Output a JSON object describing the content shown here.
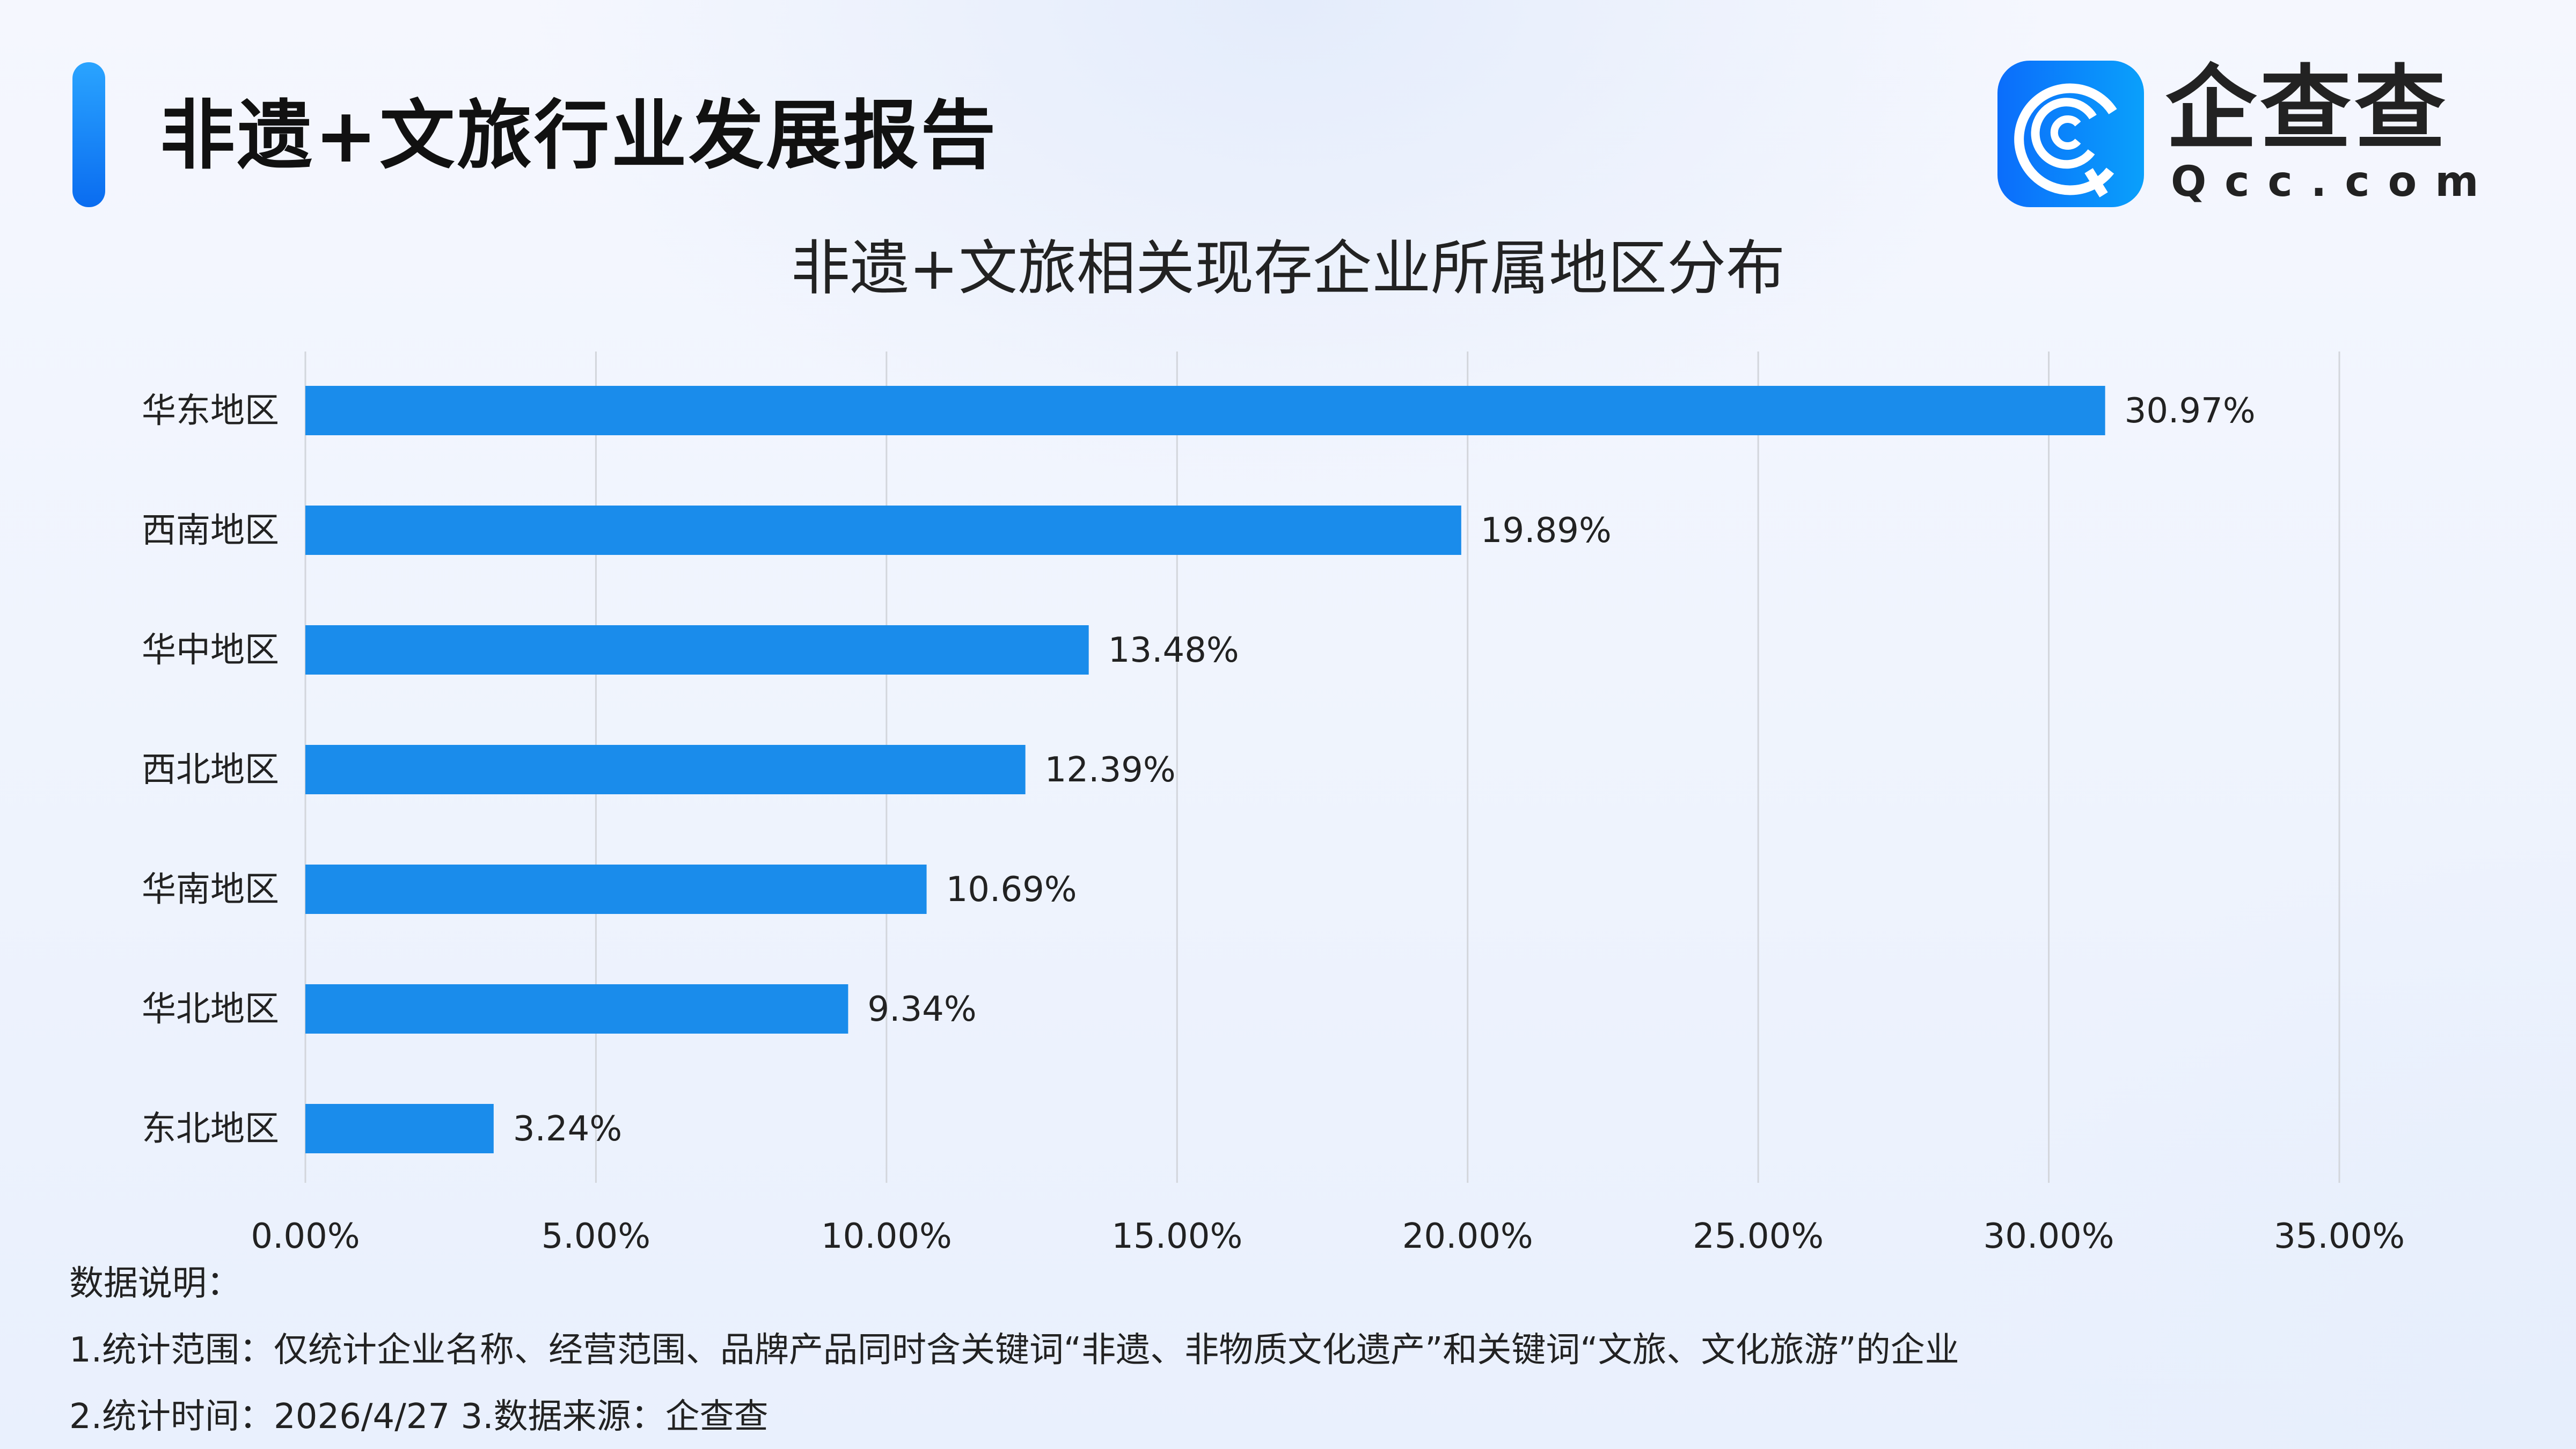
{
  "header": {
    "title": "非遗+文旅行业发展报告",
    "logo_cn": "企查查",
    "logo_en": "Qcc.com"
  },
  "colors": {
    "bar": "#1a8ceb",
    "accent": "#1684f5",
    "grid": "#d3d6dc"
  },
  "chart_data": {
    "type": "bar",
    "orientation": "horizontal",
    "title": "非遗+文旅相关现存企业所属地区分布",
    "categories": [
      "华东地区",
      "西南地区",
      "华中地区",
      "西北地区",
      "华南地区",
      "华北地区",
      "东北地区"
    ],
    "values": [
      30.97,
      19.89,
      13.48,
      12.39,
      10.69,
      9.34,
      3.24
    ],
    "value_labels": [
      "30.97%",
      "19.89%",
      "13.48%",
      "12.39%",
      "10.69%",
      "9.34%",
      "3.24%"
    ],
    "xlim": [
      0,
      35
    ],
    "xticks": [
      0,
      5,
      10,
      15,
      20,
      25,
      30,
      35
    ],
    "xtick_labels": [
      "0.00%",
      "5.00%",
      "10.00%",
      "15.00%",
      "20.00%",
      "25.00%",
      "30.00%",
      "35.00%"
    ],
    "xlabel": "",
    "ylabel": "",
    "grid": "vertical"
  },
  "notes": {
    "heading": "数据说明：",
    "line1": "1.统计范围：仅统计企业名称、经营范围、品牌产品同时含关键词“非遗、非物质文化遗产”和关键词“文旅、文化旅游”的企业",
    "line2": "2.统计时间：2026/4/27  3.数据来源：企查查"
  }
}
